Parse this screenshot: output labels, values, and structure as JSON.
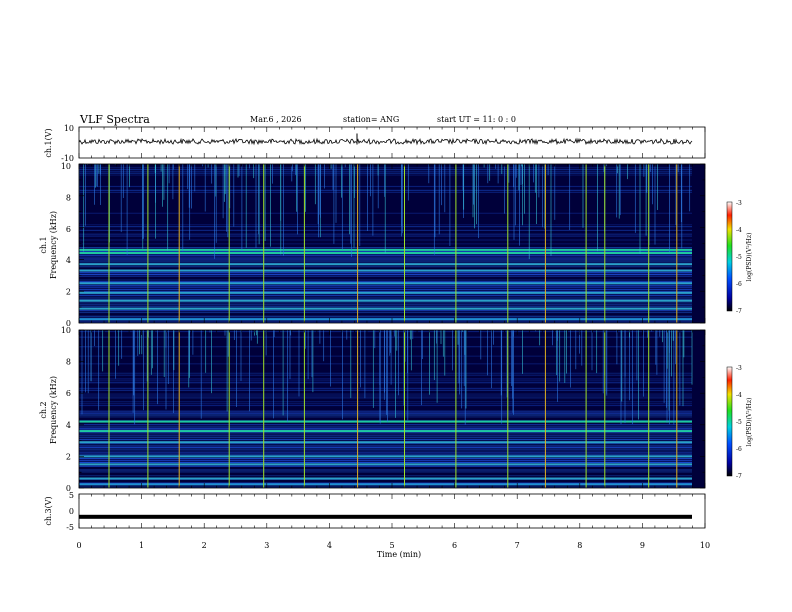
{
  "header": {
    "title": "VLF Spectra",
    "date": "Mar.6 , 2026",
    "station": "station= ANG",
    "start": "start  UT =   11: 0  : 0"
  },
  "chart_data": [
    {
      "type": "line",
      "name": "ch1-waveform",
      "ylabel": "ch.1(V)",
      "ylim": [
        -10,
        10
      ],
      "yticks": [
        "10",
        "-10"
      ],
      "xlim": [
        0,
        10
      ],
      "baseline": 0,
      "amplitude": 1
    },
    {
      "type": "heatmap",
      "name": "ch1-spectrogram",
      "ylabel_channel": "ch.1",
      "ylabel": "Frequency  (kHz)",
      "ylim": [
        0,
        10
      ],
      "yticks": [
        "0",
        "2",
        "4",
        "6",
        "8",
        "10"
      ],
      "xlim": [
        0,
        10
      ],
      "strong_bands_khz": [
        4.4,
        4.6,
        3.7,
        3.3,
        2.5,
        1.9,
        1.4,
        0.9
      ],
      "spike_times_min": [
        0.48,
        1.1,
        1.6,
        2.4,
        2.95,
        3.6,
        4.45,
        5.2,
        6.02,
        6.85,
        7.45,
        8.1,
        8.4,
        9.1,
        9.55
      ]
    },
    {
      "type": "heatmap",
      "name": "ch2-spectrogram",
      "ylabel_channel": "ch.2",
      "ylabel": "Frequency  (kHz)",
      "ylim": [
        0,
        10
      ],
      "yticks": [
        "0",
        "2",
        "4",
        "6",
        "8",
        "10"
      ],
      "xlim": [
        0,
        10
      ],
      "strong_bands_khz": [
        4.2,
        3.6,
        2.9,
        2.0,
        1.5,
        0.6
      ],
      "spike_times_min": [
        0.48,
        1.1,
        1.6,
        2.4,
        2.95,
        3.6,
        4.45,
        5.2,
        6.02,
        6.85,
        7.45,
        8.1,
        8.4,
        9.1,
        9.55
      ]
    },
    {
      "type": "line",
      "name": "ch3-waveform",
      "ylabel": "ch.3(V)",
      "ylim": [
        -5,
        5
      ],
      "yticks": [
        "5",
        "0",
        "-5"
      ],
      "xlim": [
        0,
        10
      ],
      "baseline": -1.7
    }
  ],
  "xaxis": {
    "label": "Time  (min)",
    "ticks": [
      "0",
      "1",
      "2",
      "3",
      "4",
      "5",
      "6",
      "7",
      "8",
      "9",
      "10"
    ]
  },
  "colorbar": {
    "label": "log(PSD)(V²/Hz)",
    "ticks": [
      "-3",
      "-4",
      "-5",
      "-6",
      "-7"
    ],
    "range": [
      -7,
      -3
    ]
  },
  "colors": {
    "background": "#00003a",
    "bands": "#1d4fd8",
    "strong": "#1ec8a0",
    "spike": "#9ee02a",
    "spike_hot": "#e0b020"
  }
}
